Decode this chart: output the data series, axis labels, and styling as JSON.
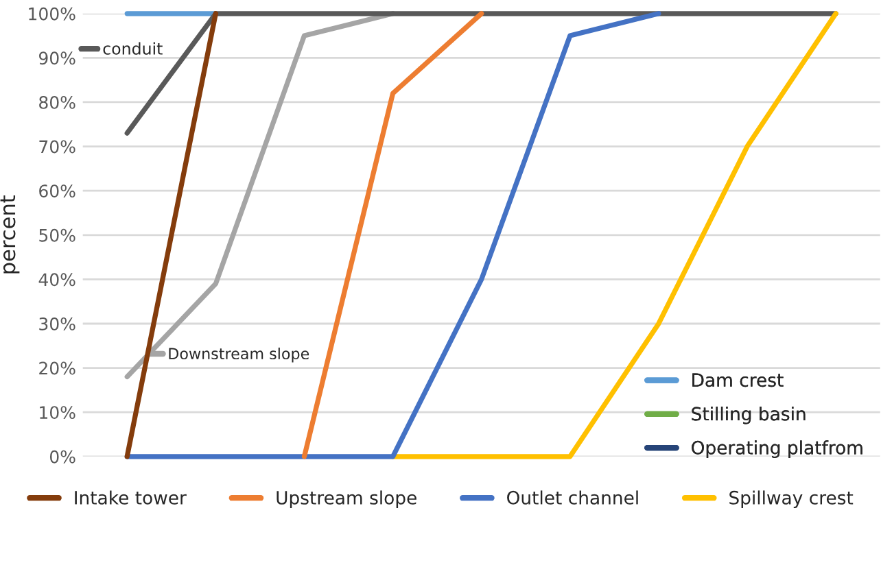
{
  "chart_data": {
    "type": "line",
    "ylabel": "percent",
    "categories": [
      null,
      null,
      null,
      null,
      null,
      null,
      null,
      null,
      null
    ],
    "series": [
      {
        "name": "Intake tower",
        "color": "#843c0c",
        "values": [
          0,
          100,
          null,
          null,
          null,
          null,
          null,
          null,
          null
        ]
      },
      {
        "name": "Upstream slope",
        "color": "#ed7d31",
        "values": [
          null,
          null,
          0,
          82,
          100,
          null,
          null,
          null,
          null
        ]
      },
      {
        "name": "Outlet channel",
        "color": "#4472c4",
        "values": [
          0,
          0,
          0,
          0,
          40,
          95,
          100,
          null,
          null
        ]
      },
      {
        "name": "Spillway crest",
        "color": "#ffc000",
        "values": [
          null,
          null,
          null,
          0,
          0,
          0,
          30,
          70,
          100
        ]
      },
      {
        "name": "conduit",
        "color": "#595959",
        "values": [
          73,
          100,
          100,
          100,
          100,
          100,
          100,
          100,
          100
        ]
      },
      {
        "name": "Downstream slope",
        "color": "#a5a5a5",
        "values": [
          18,
          39,
          95,
          100,
          null,
          null,
          null,
          null,
          null
        ]
      },
      {
        "name": "Dam crest",
        "color": "#5b9bd5",
        "values": [
          100,
          100,
          null,
          null,
          null,
          null,
          null,
          null,
          null
        ]
      },
      {
        "name": "Stilling basin",
        "color": "#70ad47",
        "values": [
          null,
          null,
          null,
          null,
          null,
          null,
          null,
          null,
          null
        ]
      },
      {
        "name": "Operating platfrom",
        "color": "#264478",
        "values": [
          null,
          null,
          null,
          null,
          null,
          null,
          null,
          null,
          null
        ]
      }
    ],
    "ylim": [
      0,
      100
    ],
    "yticks": [
      {
        "value": 0,
        "label": "0%"
      },
      {
        "value": 10,
        "label": "10%"
      },
      {
        "value": 20,
        "label": "20%"
      },
      {
        "value": 30,
        "label": "30%"
      },
      {
        "value": 40,
        "label": "40%"
      },
      {
        "value": 50,
        "label": "50%"
      },
      {
        "value": 60,
        "label": "60%"
      },
      {
        "value": 70,
        "label": "70%"
      },
      {
        "value": 80,
        "label": "80%"
      },
      {
        "value": 90,
        "label": "90%"
      },
      {
        "value": 100,
        "label": "100%"
      }
    ],
    "grid": "y",
    "legend": "bottom",
    "tick_labels": "y",
    "marker": "none",
    "line_style": "solid"
  }
}
